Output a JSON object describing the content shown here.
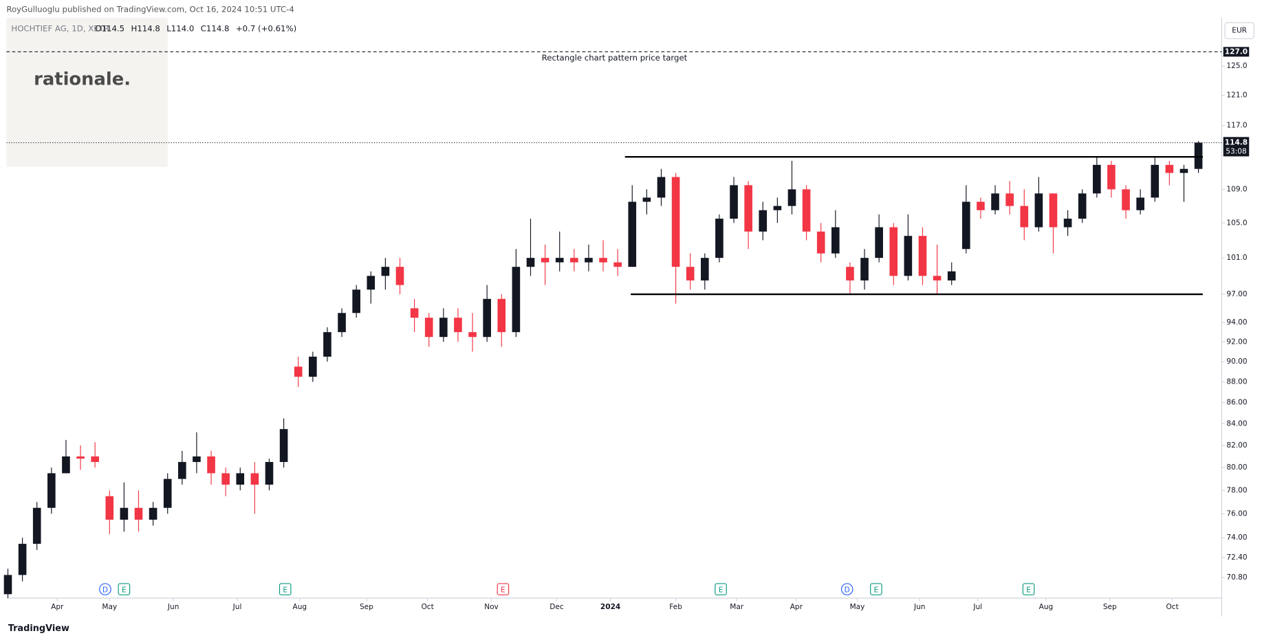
{
  "chart_data": {
    "type": "candlestick",
    "header": "RoyGulluoglu published on TradingView.com, Oct 16, 2024 10:51 UTC-4",
    "symbol": "HOCHTIEF AG, 1D, XETR",
    "ohlc_legend": [
      "O114.5",
      "H114.8",
      "L114.0",
      "C114.8",
      "+0.7 (+0.61%)"
    ],
    "currency": "EUR",
    "watermark": "rationale.",
    "footer": "TradingView",
    "log_scale": true,
    "grid": false,
    "up_color": "#131722",
    "down_color": "#f23645",
    "x": [
      0,
      1,
      2,
      3,
      4,
      5,
      6,
      7,
      8,
      9,
      10,
      11,
      12,
      13,
      14,
      15,
      16,
      17,
      18,
      19,
      20,
      21,
      22,
      23,
      24,
      25,
      26,
      27,
      28,
      29,
      30,
      31,
      32,
      33,
      34,
      35,
      36,
      37,
      38,
      39,
      40,
      41,
      42,
      43,
      44,
      45,
      46,
      47,
      48,
      49,
      50,
      51,
      52,
      53,
      54,
      55,
      56,
      57,
      58,
      59,
      60,
      61,
      62,
      63,
      64,
      65,
      66,
      67,
      68,
      69,
      70,
      71,
      72,
      73,
      74,
      75,
      76,
      77,
      78,
      79,
      80,
      81,
      82
    ],
    "candles": [
      [
        69.5,
        71.5,
        69.2,
        71
      ],
      [
        71,
        74,
        70.5,
        73.5
      ],
      [
        73.5,
        77,
        73,
        76.5
      ],
      [
        76.5,
        80,
        76,
        79.5
      ],
      [
        79.5,
        82.5,
        79.5,
        81
      ],
      [
        81,
        82,
        79.8,
        80.8
      ],
      [
        81,
        82.3,
        80,
        80.5
      ],
      [
        77.5,
        78,
        74.3,
        75.5
      ],
      [
        75.5,
        78.7,
        74.5,
        76.5
      ],
      [
        76.5,
        78,
        74.5,
        75.5
      ],
      [
        75.5,
        77,
        75,
        76.5
      ],
      [
        76.5,
        79.5,
        76,
        79
      ],
      [
        79,
        81.5,
        78.5,
        80.5
      ],
      [
        80.5,
        83.2,
        79.5,
        81
      ],
      [
        81,
        81.5,
        78.5,
        79.5
      ],
      [
        79.5,
        80,
        77.5,
        78.5
      ],
      [
        78.5,
        80,
        78,
        79.5
      ],
      [
        79.5,
        80.5,
        76,
        78.5
      ],
      [
        78.5,
        80.8,
        78,
        80.5
      ],
      [
        80.5,
        84.5,
        80,
        83.5
      ],
      [
        89.5,
        90.5,
        87.5,
        88.5
      ],
      [
        88.5,
        91,
        88,
        90.5
      ],
      [
        90.5,
        93.5,
        90,
        93
      ],
      [
        93,
        95.5,
        92.5,
        95
      ],
      [
        95,
        98,
        94.5,
        97.5
      ],
      [
        97.5,
        99.5,
        96,
        99
      ],
      [
        99,
        101,
        97.5,
        100
      ],
      [
        100,
        101,
        97,
        98
      ],
      [
        95.5,
        96.5,
        93,
        94.5
      ],
      [
        94.5,
        95,
        91.5,
        92.5
      ],
      [
        92.5,
        95.5,
        92,
        94.5
      ],
      [
        94.5,
        95.5,
        92,
        93
      ],
      [
        93,
        95,
        91,
        92.5
      ],
      [
        92.5,
        98,
        92,
        96.5
      ],
      [
        96.5,
        97,
        91.5,
        93
      ],
      [
        93,
        102,
        92.5,
        100
      ],
      [
        100,
        105.5,
        99,
        101
      ],
      [
        101,
        102.5,
        98,
        100.5
      ],
      [
        100.5,
        104,
        99.5,
        101
      ],
      [
        101,
        102,
        99.5,
        100.5
      ],
      [
        100.5,
        102.5,
        99.5,
        101
      ],
      [
        101,
        103,
        99.5,
        100.5
      ],
      [
        100.5,
        102,
        99,
        100
      ],
      [
        100,
        109.5,
        100,
        107.5
      ],
      [
        107.5,
        109,
        106,
        108
      ],
      [
        108,
        111.5,
        107,
        110.5
      ],
      [
        110.5,
        111,
        96,
        100
      ],
      [
        100,
        101.5,
        97.5,
        98.5
      ],
      [
        98.5,
        101.5,
        97.5,
        101
      ],
      [
        101,
        106,
        100.5,
        105.5
      ],
      [
        105.5,
        110.5,
        105,
        109.5
      ],
      [
        109.5,
        110,
        102,
        104
      ],
      [
        104,
        107.5,
        103,
        106.5
      ],
      [
        106.5,
        108,
        105,
        107
      ],
      [
        107,
        112.5,
        106,
        109
      ],
      [
        109,
        109.5,
        103,
        104
      ],
      [
        104,
        105,
        100.5,
        101.5
      ],
      [
        101.5,
        106.5,
        101,
        104.5
      ],
      [
        100,
        100.5,
        97,
        98.5
      ],
      [
        98.5,
        102,
        97.5,
        101
      ],
      [
        101,
        106,
        100.5,
        104.5
      ],
      [
        104.5,
        105,
        98,
        99
      ],
      [
        99,
        106,
        98.5,
        103.5
      ],
      [
        103.5,
        104.5,
        98,
        99
      ],
      [
        99,
        102.5,
        97,
        98.5
      ],
      [
        98.5,
        100.5,
        98,
        99.5
      ],
      [
        102,
        109.5,
        101.5,
        107.5
      ],
      [
        107.5,
        108,
        105.5,
        106.5
      ],
      [
        106.5,
        109.5,
        106,
        108.5
      ],
      [
        108.5,
        110,
        106,
        107
      ],
      [
        107,
        109,
        103,
        104.5
      ],
      [
        104.5,
        110.5,
        104,
        108.5
      ],
      [
        108.5,
        108.5,
        101.5,
        104.5
      ],
      [
        104.5,
        106.5,
        103.5,
        105.5
      ],
      [
        105.5,
        109,
        105,
        108.5
      ],
      [
        108.5,
        113,
        108,
        112
      ],
      [
        112,
        112.5,
        108,
        109
      ],
      [
        109,
        109.5,
        105.5,
        106.5
      ],
      [
        106.5,
        109,
        106,
        108
      ],
      [
        108,
        113,
        107.5,
        112
      ],
      [
        112,
        112.5,
        109.5,
        111
      ],
      [
        111,
        112,
        107.5,
        111.5
      ],
      [
        111.5,
        115,
        111,
        114.8
      ]
    ],
    "xlim": [
      -0.1,
      83.6
    ],
    "xticks": [
      {
        "value": 3.4,
        "label": "Apr"
      },
      {
        "value": 7.0,
        "label": "May"
      },
      {
        "value": 11.4,
        "label": "Jun"
      },
      {
        "value": 15.8,
        "label": "Jul"
      },
      {
        "value": 20.1,
        "label": "Aug"
      },
      {
        "value": 24.7,
        "label": "Sep"
      },
      {
        "value": 28.9,
        "label": "Oct"
      },
      {
        "value": 33.3,
        "label": "Nov"
      },
      {
        "value": 37.8,
        "label": "Dec"
      },
      {
        "value": 41.5,
        "label": "2024"
      },
      {
        "value": 46.0,
        "label": "Feb"
      },
      {
        "value": 50.2,
        "label": "Mar"
      },
      {
        "value": 54.3,
        "label": "Apr"
      },
      {
        "value": 58.5,
        "label": "May"
      },
      {
        "value": 62.8,
        "label": "Jun"
      },
      {
        "value": 66.8,
        "label": "Jul"
      },
      {
        "value": 71.5,
        "label": "Aug"
      },
      {
        "value": 75.9,
        "label": "Sep"
      },
      {
        "value": 80.2,
        "label": "Oct"
      }
    ],
    "ylim": [
      69.2,
      131.9
    ],
    "yticks": [
      {
        "value": 70.8,
        "label": "70.80"
      },
      {
        "value": 72.4,
        "label": "72.40"
      },
      {
        "value": 74,
        "label": "74.00"
      },
      {
        "value": 76,
        "label": "76.00"
      },
      {
        "value": 78,
        "label": "78.00"
      },
      {
        "value": 80,
        "label": "80.00"
      },
      {
        "value": 82,
        "label": "82.00"
      },
      {
        "value": 84,
        "label": "84.00"
      },
      {
        "value": 86,
        "label": "86.00"
      },
      {
        "value": 88,
        "label": "88.00"
      },
      {
        "value": 90,
        "label": "90.00"
      },
      {
        "value": 92,
        "label": "92.00"
      },
      {
        "value": 94,
        "label": "94.00"
      },
      {
        "value": 97,
        "label": "97.00"
      },
      {
        "value": 101,
        "label": "101.0"
      },
      {
        "value": 105,
        "label": "105.0"
      },
      {
        "value": 109,
        "label": "109.0"
      },
      {
        "value": 117,
        "label": "117.0"
      },
      {
        "value": 121,
        "label": "121.0"
      },
      {
        "value": 125,
        "label": "125.0"
      }
    ],
    "pattern_lines": [
      {
        "value": 113,
        "x": [
          42.5,
          82.3
        ]
      },
      {
        "value": 97,
        "x": [
          42.9,
          82.3
        ]
      }
    ],
    "target": {
      "value": 127,
      "label": "127.0",
      "text": "Rectangle chart pattern price target"
    },
    "last_price": {
      "value": 114.8,
      "label": "114.8",
      "countdown": "53:08"
    },
    "events": [
      {
        "x": 6.7,
        "label": "D",
        "color": "#2962ff"
      },
      {
        "x": 8.0,
        "label": "E",
        "color": "#089981"
      },
      {
        "x": 19.1,
        "label": "E",
        "color": "#089981"
      },
      {
        "x": 34.1,
        "label": "E",
        "color": "#f23645"
      },
      {
        "x": 49.1,
        "label": "E",
        "color": "#089981"
      },
      {
        "x": 57.8,
        "label": "D",
        "color": "#2962ff"
      },
      {
        "x": 59.8,
        "label": "E",
        "color": "#089981"
      },
      {
        "x": 70.3,
        "label": "E",
        "color": "#089981"
      }
    ]
  }
}
